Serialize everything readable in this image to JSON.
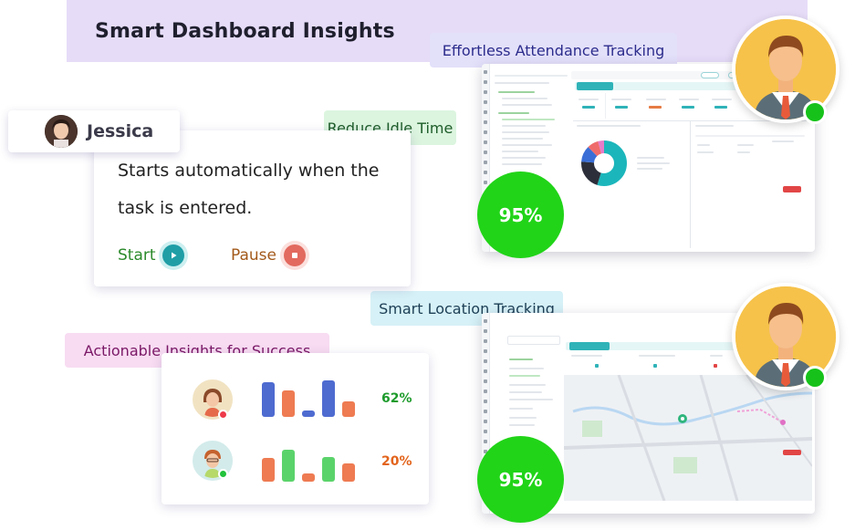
{
  "header": {
    "title": "Smart Dashboard Insights"
  },
  "labels": {
    "attendance": "Effortless Attendance Tracking",
    "idle": "Reduce Idle Time",
    "location": "Smart Location Tracking",
    "actionable": "Actionable Insights for Success"
  },
  "user": {
    "name": "Jessica"
  },
  "task": {
    "line1": "Starts automatically when the",
    "line2": "task is entered.",
    "start_label": "Start",
    "pause_label": "Pause"
  },
  "insights": {
    "rows": [
      {
        "percent": "62%",
        "status": "offline",
        "bars": [
          0.95,
          0.72,
          0.18,
          1.0,
          0.42
        ]
      },
      {
        "percent": "20%",
        "status": "online",
        "bars": [
          0.64,
          0.88,
          0.22,
          0.68,
          0.5
        ]
      }
    ]
  },
  "badges": {
    "top": "95%",
    "bottom": "95%"
  },
  "colors": {
    "header_band": "#e6dcf8",
    "badge_green": "#21d418",
    "online_green": "#16c21a",
    "bar_blue": "#4e6bd0",
    "bar_orange": "#ee7b52",
    "bar_green": "#5bd36b",
    "pct_green": "#1e9b2c",
    "pct_orange": "#e2641c"
  },
  "icons": {
    "play": "play-icon",
    "stop": "stop-icon",
    "avatar_man": "man-avatar-icon"
  }
}
